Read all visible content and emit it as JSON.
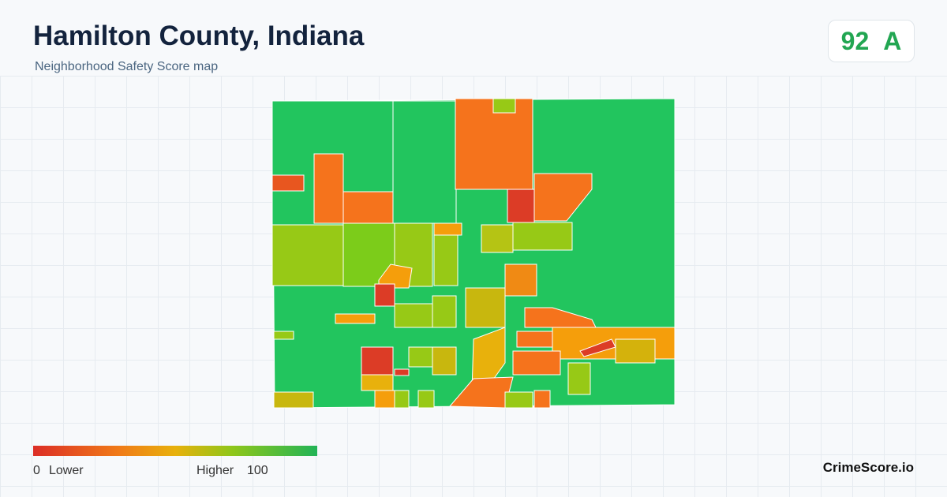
{
  "header": {
    "title": "Hamilton County, Indiana",
    "subtitle": "Neighborhood Safety Score map"
  },
  "score": {
    "value": 92,
    "grade": "A"
  },
  "legend": {
    "min": 0,
    "min_label": "Lower",
    "max": 100,
    "max_label": "Higher"
  },
  "brand": "CrimeScore.io"
}
